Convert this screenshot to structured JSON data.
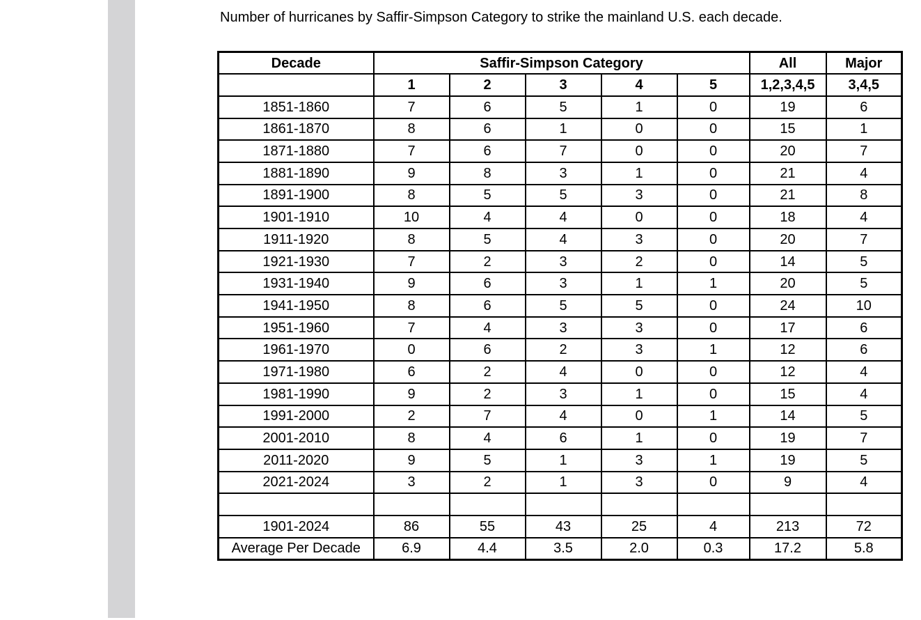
{
  "page": {
    "title": "Number of hurricanes by Saffir-Simpson Category to strike the mainland U.S. each decade."
  },
  "colors": {
    "background": "#ffffff",
    "left_bar": "#d4d4d6",
    "table_border": "#000000",
    "text": "#000000"
  },
  "table": {
    "header": {
      "decade": "Decade",
      "category_group": "Saffir-Simpson Category",
      "all": "All",
      "major": "Major"
    },
    "subheader": [
      "",
      "1",
      "2",
      "3",
      "4",
      "5",
      "1,2,3,4,5",
      "3,4,5"
    ],
    "decade_rows": [
      {
        "decade": "1851-1860",
        "values": [
          "7",
          "6",
          "5",
          "1",
          "0",
          "19",
          "6"
        ]
      },
      {
        "decade": "1861-1870",
        "values": [
          "8",
          "6",
          "1",
          "0",
          "0",
          "15",
          "1"
        ]
      },
      {
        "decade": "1871-1880",
        "values": [
          "7",
          "6",
          "7",
          "0",
          "0",
          "20",
          "7"
        ]
      },
      {
        "decade": "1881-1890",
        "values": [
          "9",
          "8",
          "3",
          "1",
          "0",
          "21",
          "4"
        ]
      },
      {
        "decade": "1891-1900",
        "values": [
          "8",
          "5",
          "5",
          "3",
          "0",
          "21",
          "8"
        ]
      },
      {
        "decade": "1901-1910",
        "values": [
          "10",
          "4",
          "4",
          "0",
          "0",
          "18",
          "4"
        ]
      },
      {
        "decade": "1911-1920",
        "values": [
          "8",
          "5",
          "4",
          "3",
          "0",
          "20",
          "7"
        ]
      },
      {
        "decade": "1921-1930",
        "values": [
          "7",
          "2",
          "3",
          "2",
          "0",
          "14",
          "5"
        ]
      },
      {
        "decade": "1931-1940",
        "values": [
          "9",
          "6",
          "3",
          "1",
          "1",
          "20",
          "5"
        ]
      },
      {
        "decade": "1941-1950",
        "values": [
          "8",
          "6",
          "5",
          "5",
          "0",
          "24",
          "10"
        ]
      },
      {
        "decade": "1951-1960",
        "values": [
          "7",
          "4",
          "3",
          "3",
          "0",
          "17",
          "6"
        ]
      },
      {
        "decade": "1961-1970",
        "values": [
          "0",
          "6",
          "2",
          "3",
          "1",
          "12",
          "6"
        ]
      },
      {
        "decade": "1971-1980",
        "values": [
          "6",
          "2",
          "4",
          "0",
          "0",
          "12",
          "4"
        ]
      },
      {
        "decade": "1981-1990",
        "values": [
          "9",
          "2",
          "3",
          "1",
          "0",
          "15",
          "4"
        ]
      },
      {
        "decade": "1991-2000",
        "values": [
          "2",
          "7",
          "4",
          "0",
          "1",
          "14",
          "5"
        ]
      },
      {
        "decade": "2001-2010",
        "values": [
          "8",
          "4",
          "6",
          "1",
          "0",
          "19",
          "7"
        ]
      },
      {
        "decade": "2011-2020",
        "values": [
          "9",
          "5",
          "1",
          "3",
          "1",
          "19",
          "5"
        ]
      },
      {
        "decade": "2021-2024",
        "values": [
          "3",
          "2",
          "1",
          "3",
          "0",
          "9",
          "4"
        ]
      }
    ],
    "spacer_row": {
      "decade": "",
      "values": [
        "",
        "",
        "",
        "",
        "",
        "",
        ""
      ]
    },
    "summary_rows": [
      {
        "decade": "1901-2024",
        "values": [
          "86",
          "55",
          "43",
          "25",
          "4",
          "213",
          "72"
        ]
      },
      {
        "decade": "Average Per Decade",
        "values": [
          "6.9",
          "4.4",
          "3.5",
          "2.0",
          "0.3",
          "17.2",
          "5.8"
        ]
      }
    ]
  },
  "chart_data": {
    "type": "table",
    "title": "Number of hurricanes by Saffir-Simpson Category to strike the mainland U.S. each decade.",
    "columns": [
      "Decade",
      "Category 1",
      "Category 2",
      "Category 3",
      "Category 4",
      "Category 5",
      "All 1,2,3,4,5",
      "Major 3,4,5"
    ],
    "rows": [
      [
        "1851-1860",
        7,
        6,
        5,
        1,
        0,
        19,
        6
      ],
      [
        "1861-1870",
        8,
        6,
        1,
        0,
        0,
        15,
        1
      ],
      [
        "1871-1880",
        7,
        6,
        7,
        0,
        0,
        20,
        7
      ],
      [
        "1881-1890",
        9,
        8,
        3,
        1,
        0,
        21,
        4
      ],
      [
        "1891-1900",
        8,
        5,
        5,
        3,
        0,
        21,
        8
      ],
      [
        "1901-1910",
        10,
        4,
        4,
        0,
        0,
        18,
        4
      ],
      [
        "1911-1920",
        8,
        5,
        4,
        3,
        0,
        20,
        7
      ],
      [
        "1921-1930",
        7,
        2,
        3,
        2,
        0,
        14,
        5
      ],
      [
        "1931-1940",
        9,
        6,
        3,
        1,
        1,
        20,
        5
      ],
      [
        "1941-1950",
        8,
        6,
        5,
        5,
        0,
        24,
        10
      ],
      [
        "1951-1960",
        7,
        4,
        3,
        3,
        0,
        17,
        6
      ],
      [
        "1961-1970",
        0,
        6,
        2,
        3,
        1,
        12,
        6
      ],
      [
        "1971-1980",
        6,
        2,
        4,
        0,
        0,
        12,
        4
      ],
      [
        "1981-1990",
        9,
        2,
        3,
        1,
        0,
        15,
        4
      ],
      [
        "1991-2000",
        2,
        7,
        4,
        0,
        1,
        14,
        5
      ],
      [
        "2001-2010",
        8,
        4,
        6,
        1,
        0,
        19,
        7
      ],
      [
        "2011-2020",
        9,
        5,
        1,
        3,
        1,
        19,
        5
      ],
      [
        "2021-2024",
        3,
        2,
        1,
        3,
        0,
        9,
        4
      ],
      [
        "1901-2024",
        86,
        55,
        43,
        25,
        4,
        213,
        72
      ],
      [
        "Average Per Decade",
        6.9,
        4.4,
        3.5,
        2.0,
        0.3,
        17.2,
        5.8
      ]
    ]
  }
}
